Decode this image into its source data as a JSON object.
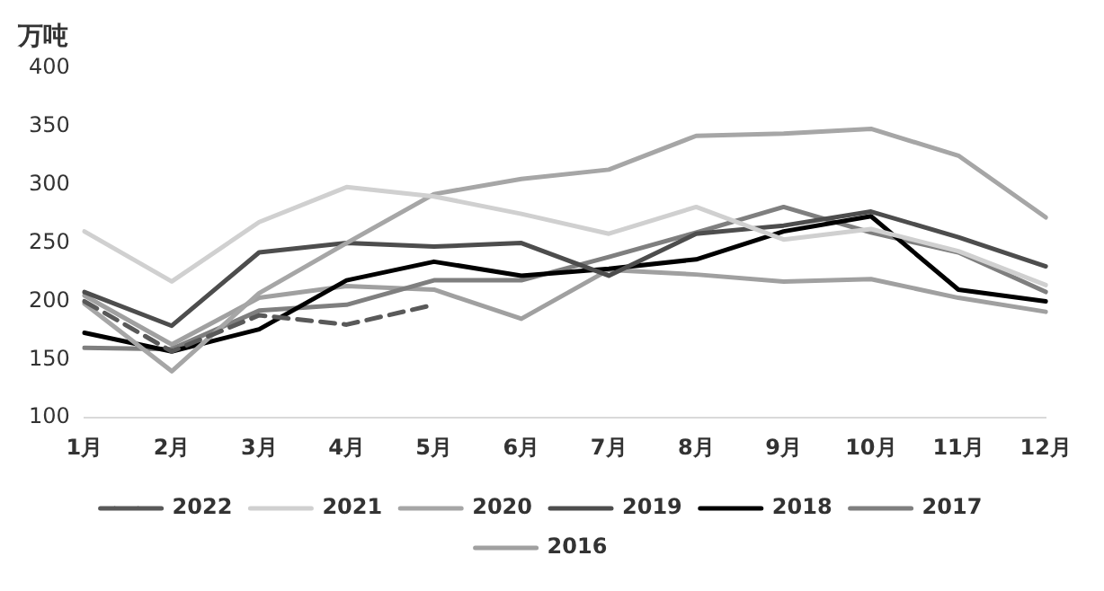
{
  "chart_data": {
    "type": "line",
    "ylabel": "万吨",
    "categories": [
      "1月",
      "2月",
      "3月",
      "4月",
      "5月",
      "6月",
      "7月",
      "8月",
      "9月",
      "10月",
      "11月",
      "12月"
    ],
    "ylim": [
      100,
      400
    ],
    "yticks": [
      100,
      150,
      200,
      250,
      300,
      350,
      400
    ],
    "grid": false,
    "legend": "bottom",
    "marker": "none",
    "series": [
      {
        "name": "2022",
        "color": "#595959",
        "line_style": "dashed",
        "values": [
          200,
          157,
          188,
          180,
          197,
          null,
          null,
          null,
          null,
          null,
          null,
          null
        ]
      },
      {
        "name": "2021",
        "color": "#d0d0d0",
        "values": [
          260,
          217,
          268,
          298,
          290,
          275,
          258,
          281,
          253,
          262,
          243,
          214
        ]
      },
      {
        "name": "2020",
        "color": "#a6a6a6",
        "values": [
          198,
          140,
          207,
          250,
          292,
          305,
          313,
          342,
          344,
          348,
          325,
          272
        ]
      },
      {
        "name": "2019",
        "color": "#4d4d4d",
        "values": [
          208,
          179,
          242,
          250,
          247,
          250,
          222,
          258,
          265,
          277,
          255,
          230
        ]
      },
      {
        "name": "2018",
        "color": "#000000",
        "values": [
          173,
          157,
          176,
          218,
          234,
          222,
          228,
          236,
          260,
          273,
          210,
          200
        ]
      },
      {
        "name": "2017",
        "color": "#7f7f7f",
        "values": [
          160,
          159,
          192,
          197,
          218,
          218,
          238,
          259,
          281,
          259,
          242,
          208
        ]
      },
      {
        "name": "2016",
        "color": "#a0a0a0",
        "values": [
          205,
          163,
          203,
          213,
          210,
          185,
          227,
          223,
          217,
          219,
          203,
          191
        ]
      }
    ]
  }
}
